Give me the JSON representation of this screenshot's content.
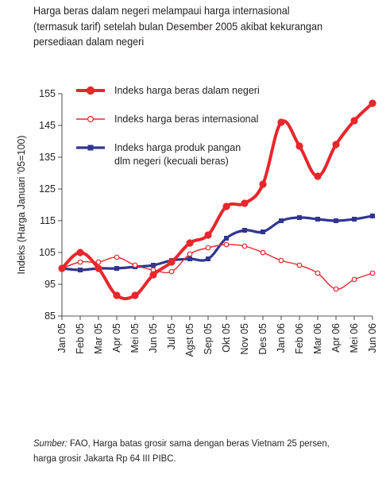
{
  "title_lines": [
    "Harga beras dalam negeri melampaui harga internasional",
    "(termasuk tarif) setelah bulan Desember 2005 akibat kekurangan",
    "persediaan dalam negeri"
  ],
  "source": {
    "label": "Sumber:",
    "line1": " FAO, Harga batas grosir sama dengan beras Vietnam 25 persen,",
    "line2": "harga grosir Jakarta Rp 64 III PIBC."
  },
  "colors": {
    "red": "#e8262b",
    "blue": "#2f3690",
    "text": "#231f20",
    "axis": "#231f20"
  },
  "chart_data": {
    "type": "line",
    "title": "Harga beras dalam negeri melampaui harga internasional (termasuk tarif) setelah bulan Desember 2005 akibat kekurangan persediaan dalam negeri",
    "xlabel": "",
    "ylabel": "Indeks (Harga Januari '05=100)",
    "ylim": [
      85,
      155
    ],
    "yticks": [
      "85",
      "95",
      "105",
      "115",
      "125",
      "135",
      "145",
      "155"
    ],
    "grid": false,
    "legend_position": "top-left",
    "x": [
      "Jan 05",
      "Feb 05",
      "Mar 05",
      "Apr 05",
      "Mei 05",
      "Jun 05",
      "Jul 05",
      "Agst 05",
      "Sep 05",
      "Okt 05",
      "Nov 05",
      "Des 05",
      "Jan 06",
      "Feb 06",
      "Mar 06",
      "Apr 06",
      "Mei 06",
      "Jun 06"
    ],
    "series": [
      {
        "name": "Indeks harga beras dalam negeri",
        "legend_lines": [
          "Indeks harga beras dalam negeri"
        ],
        "color": "#e8262b",
        "marker": "filled-circle",
        "values": [
          100,
          105,
          100,
          91.5,
          91.5,
          98,
          102,
          108,
          110.5,
          119.5,
          120.5,
          126.5,
          146,
          138.5,
          129,
          139,
          146.5,
          152
        ]
      },
      {
        "name": "Indeks harga beras internasional",
        "legend_lines": [
          "Indeks harga beras internasional"
        ],
        "color": "#e8262b",
        "marker": "open-circle",
        "values": [
          100,
          102,
          102,
          103.5,
          101,
          99.5,
          99,
          104.5,
          106.5,
          107.5,
          107,
          105,
          102.5,
          101,
          98.5,
          93.5,
          96.5,
          98.5
        ]
      },
      {
        "name": "Indeks harga produk pangan dlm negeri (kecuali beras)",
        "legend_lines": [
          "Indeks harga produk pangan",
          "dlm negeri (kecuali beras)"
        ],
        "color": "#2f3690",
        "marker": "filled-square",
        "values": [
          100,
          99.5,
          100,
          100,
          100.5,
          101,
          102.5,
          103,
          103,
          109.5,
          112,
          111.5,
          115,
          116,
          115.5,
          115,
          115.5,
          116.5
        ]
      }
    ]
  }
}
